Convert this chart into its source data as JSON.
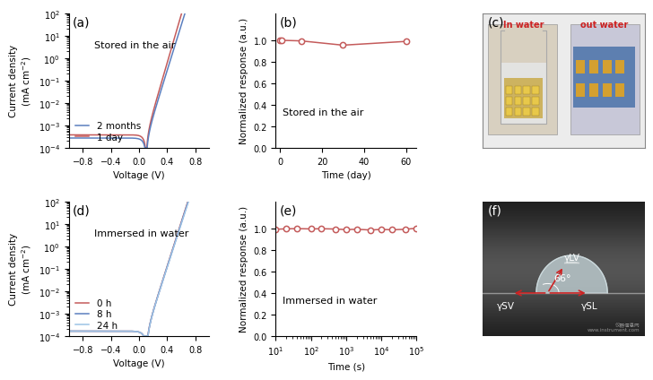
{
  "panel_a": {
    "label": "(a)",
    "annotation": "Stored in the air",
    "legend": [
      "2 months",
      "1 day"
    ],
    "colors": [
      "#5B7FBF",
      "#C45B5B"
    ],
    "xlabel": "Voltage (V)",
    "ylabel": "Current density\n(mA cm$^{-2}$)"
  },
  "panel_b": {
    "label": "(b)",
    "annotation": "Stored in the air",
    "xlabel": "Time (day)",
    "ylabel": "Normalized response (a.u.)",
    "x_data": [
      0,
      1,
      10,
      30,
      60
    ],
    "y_data": [
      1.0,
      1.0,
      0.995,
      0.955,
      0.99
    ],
    "color": "#C45B5B"
  },
  "panel_c": {
    "label": "(c)",
    "title_in": "In water",
    "title_out": "out water",
    "title_color": "#CC2222"
  },
  "panel_d": {
    "label": "(d)",
    "annotation": "Immersed in water",
    "legend": [
      "0 h",
      "8 h",
      "24 h"
    ],
    "colors": [
      "#C45B5B",
      "#5B7FBF",
      "#9DC3E6"
    ],
    "xlabel": "Voltage (V)",
    "ylabel": "Current density\n(mA cm$^{-2}$)"
  },
  "panel_e": {
    "label": "(e)",
    "annotation": "Immersed in water",
    "xlabel": "Time (s)",
    "ylabel": "Normalized response (a.u.)",
    "x_data": [
      10,
      20,
      40,
      100,
      200,
      500,
      1000,
      2000,
      5000,
      10000,
      20000,
      50000,
      100000
    ],
    "y_data": [
      0.993,
      0.997,
      0.999,
      0.996,
      0.998,
      0.995,
      0.99,
      0.993,
      0.986,
      0.992,
      0.988,
      0.993,
      1.003
    ],
    "color": "#C45B5B"
  },
  "panel_f": {
    "label": "(f)",
    "angle_text": "66°",
    "gamma_lv": "γLV",
    "gamma_sv": "γSV",
    "gamma_sl": "γSL"
  },
  "bg_color": "#FFFFFF",
  "panel_label_fontsize": 10,
  "axis_label_fontsize": 7.5,
  "tick_fontsize": 7,
  "legend_fontsize": 7.5,
  "annotation_fontsize": 8
}
